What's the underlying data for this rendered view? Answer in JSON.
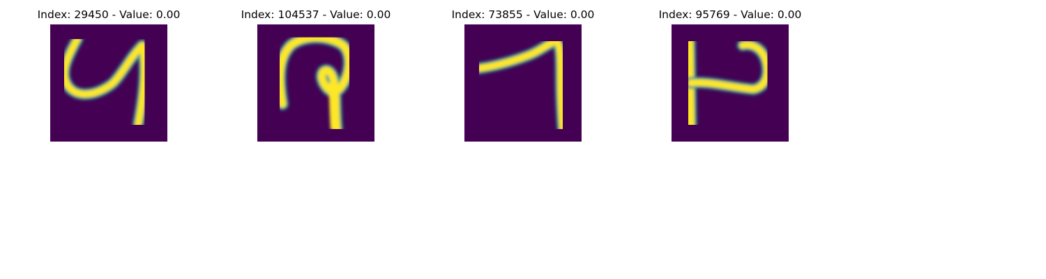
{
  "figure": {
    "background_color": "#ffffff",
    "colormap": {
      "low": "#440154",
      "mid": "#21918c",
      "high": "#fde725"
    },
    "panels": [
      {
        "title": "Index: 29450 - Value: 0.00",
        "depicted": "handwritten glyph resembling 4/y"
      },
      {
        "title": "Index: 104537 - Value: 0.00",
        "depicted": "handwritten glyph with hook and stem"
      },
      {
        "title": "Index: 73855 - Value: 0.00",
        "depicted": "handwritten glyph resembling 7"
      },
      {
        "title": "Index: 95769 - Value: 0.00",
        "depicted": "handwritten glyph resembling P/R sideways"
      }
    ]
  }
}
